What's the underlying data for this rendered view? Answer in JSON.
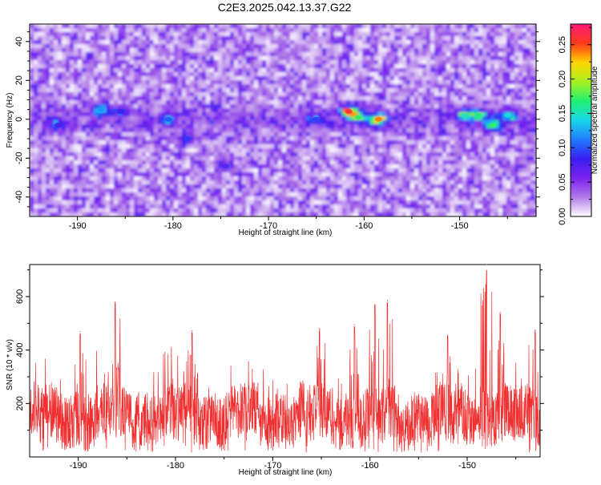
{
  "title": "C2E3.2025.042.13.37.G22",
  "chart_data": [
    {
      "type": "heatmap",
      "xlabel": "Height of straight line (km)",
      "ylabel": "Frequency (Hz)",
      "xlim": [
        -195,
        -142
      ],
      "ylim": [
        -50,
        49
      ],
      "x_ticks": [
        -190,
        -180,
        -170,
        -160,
        -150
      ],
      "y_ticks": [
        -40,
        -20,
        0,
        20,
        40
      ],
      "colorbar": {
        "label": "Normalized spectral amplitude",
        "range": [
          0,
          0.28
        ],
        "ticks": [
          0.0,
          0.05,
          0.1,
          0.15,
          0.2,
          0.25
        ],
        "tick_labels": [
          "0.00",
          "0.05",
          "0.10",
          "0.15",
          "0.20",
          "0.25"
        ],
        "colors": [
          "#ffffff",
          "#b07ae8",
          "#7a22ee",
          "#3a1ff2",
          "#1f7cff",
          "#18d8e8",
          "#20f070",
          "#a8f020",
          "#ffd400",
          "#ff3a1a",
          "#ff1a7a"
        ]
      },
      "hotspots": [
        {
          "x": -161.6,
          "y": 4,
          "value": 0.26
        },
        {
          "x": -158.5,
          "y": 0,
          "value": 0.24
        },
        {
          "x": -160.6,
          "y": 1,
          "value": 0.17
        },
        {
          "x": -148.0,
          "y": 2,
          "value": 0.16
        },
        {
          "x": -146.5,
          "y": -3,
          "value": 0.17
        },
        {
          "x": -149.5,
          "y": 2,
          "value": 0.15
        },
        {
          "x": -145.0,
          "y": 2,
          "value": 0.14
        },
        {
          "x": -187.5,
          "y": 5,
          "value": 0.12
        },
        {
          "x": -180.5,
          "y": 0,
          "value": 0.1
        },
        {
          "x": -178.5,
          "y": -10,
          "value": 0.09
        },
        {
          "x": -192.0,
          "y": -3,
          "value": 0.08
        },
        {
          "x": -165.0,
          "y": 0,
          "value": 0.09
        },
        {
          "x": -174.5,
          "y": -24,
          "value": 0.07
        },
        {
          "x": -185.5,
          "y": 4,
          "value": 0.08
        }
      ]
    },
    {
      "type": "line",
      "xlabel": "Height of straight line (km)",
      "ylabel": "SNR (10 * v/v)",
      "xlim": [
        -195,
        -142.5
      ],
      "ylim": [
        0,
        720
      ],
      "x_ticks": [
        -190,
        -180,
        -170,
        -160,
        -150
      ],
      "y_ticks": [
        200,
        400,
        600
      ],
      "line_color": "#f03030",
      "baseline": 150,
      "peaks": [
        {
          "x": -186.2,
          "y": 580
        },
        {
          "x": -158.2,
          "y": 585
        },
        {
          "x": -159.5,
          "y": 570
        },
        {
          "x": -148.0,
          "y": 720
        },
        {
          "x": -146.6,
          "y": 540
        },
        {
          "x": -152.0,
          "y": 455
        },
        {
          "x": -178.3,
          "y": 472
        },
        {
          "x": -189.8,
          "y": 470
        },
        {
          "x": -161.6,
          "y": 495
        },
        {
          "x": -165.2,
          "y": 480
        },
        {
          "x": -143.0,
          "y": 475
        }
      ]
    }
  ]
}
